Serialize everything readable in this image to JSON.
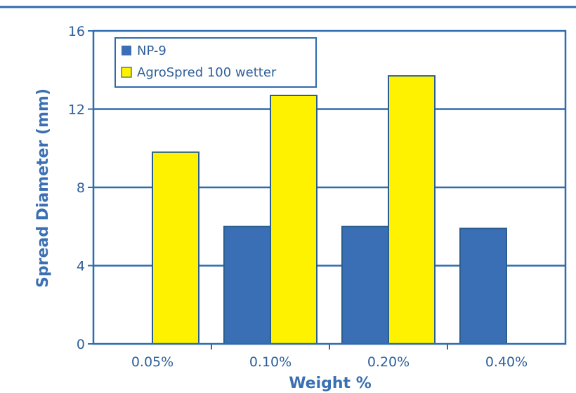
{
  "colors": {
    "frame": "#2e6bad",
    "grid": "#2e6bad",
    "np9": "#3a6fb5",
    "agro": "#fff200",
    "bar_stroke": "#2a5e8e",
    "text": "#2d5f9a",
    "title": "#3a6fb3"
  },
  "chart_data": {
    "type": "bar",
    "categories": [
      "0.05%",
      "0.10%",
      "0.20%",
      "0.40%"
    ],
    "series": [
      {
        "name": "NP-9",
        "values": [
          null,
          6.0,
          6.0,
          5.9
        ]
      },
      {
        "name": "AgroSpred 100 wetter",
        "values": [
          9.8,
          12.7,
          13.7,
          null
        ]
      }
    ],
    "xlabel": "Weight %",
    "ylabel": "Spread Diameter (mm)",
    "ylim": [
      0,
      16
    ],
    "yticks": [
      0,
      4,
      8,
      12,
      16
    ],
    "grid": true,
    "legend_position": "top-left"
  }
}
